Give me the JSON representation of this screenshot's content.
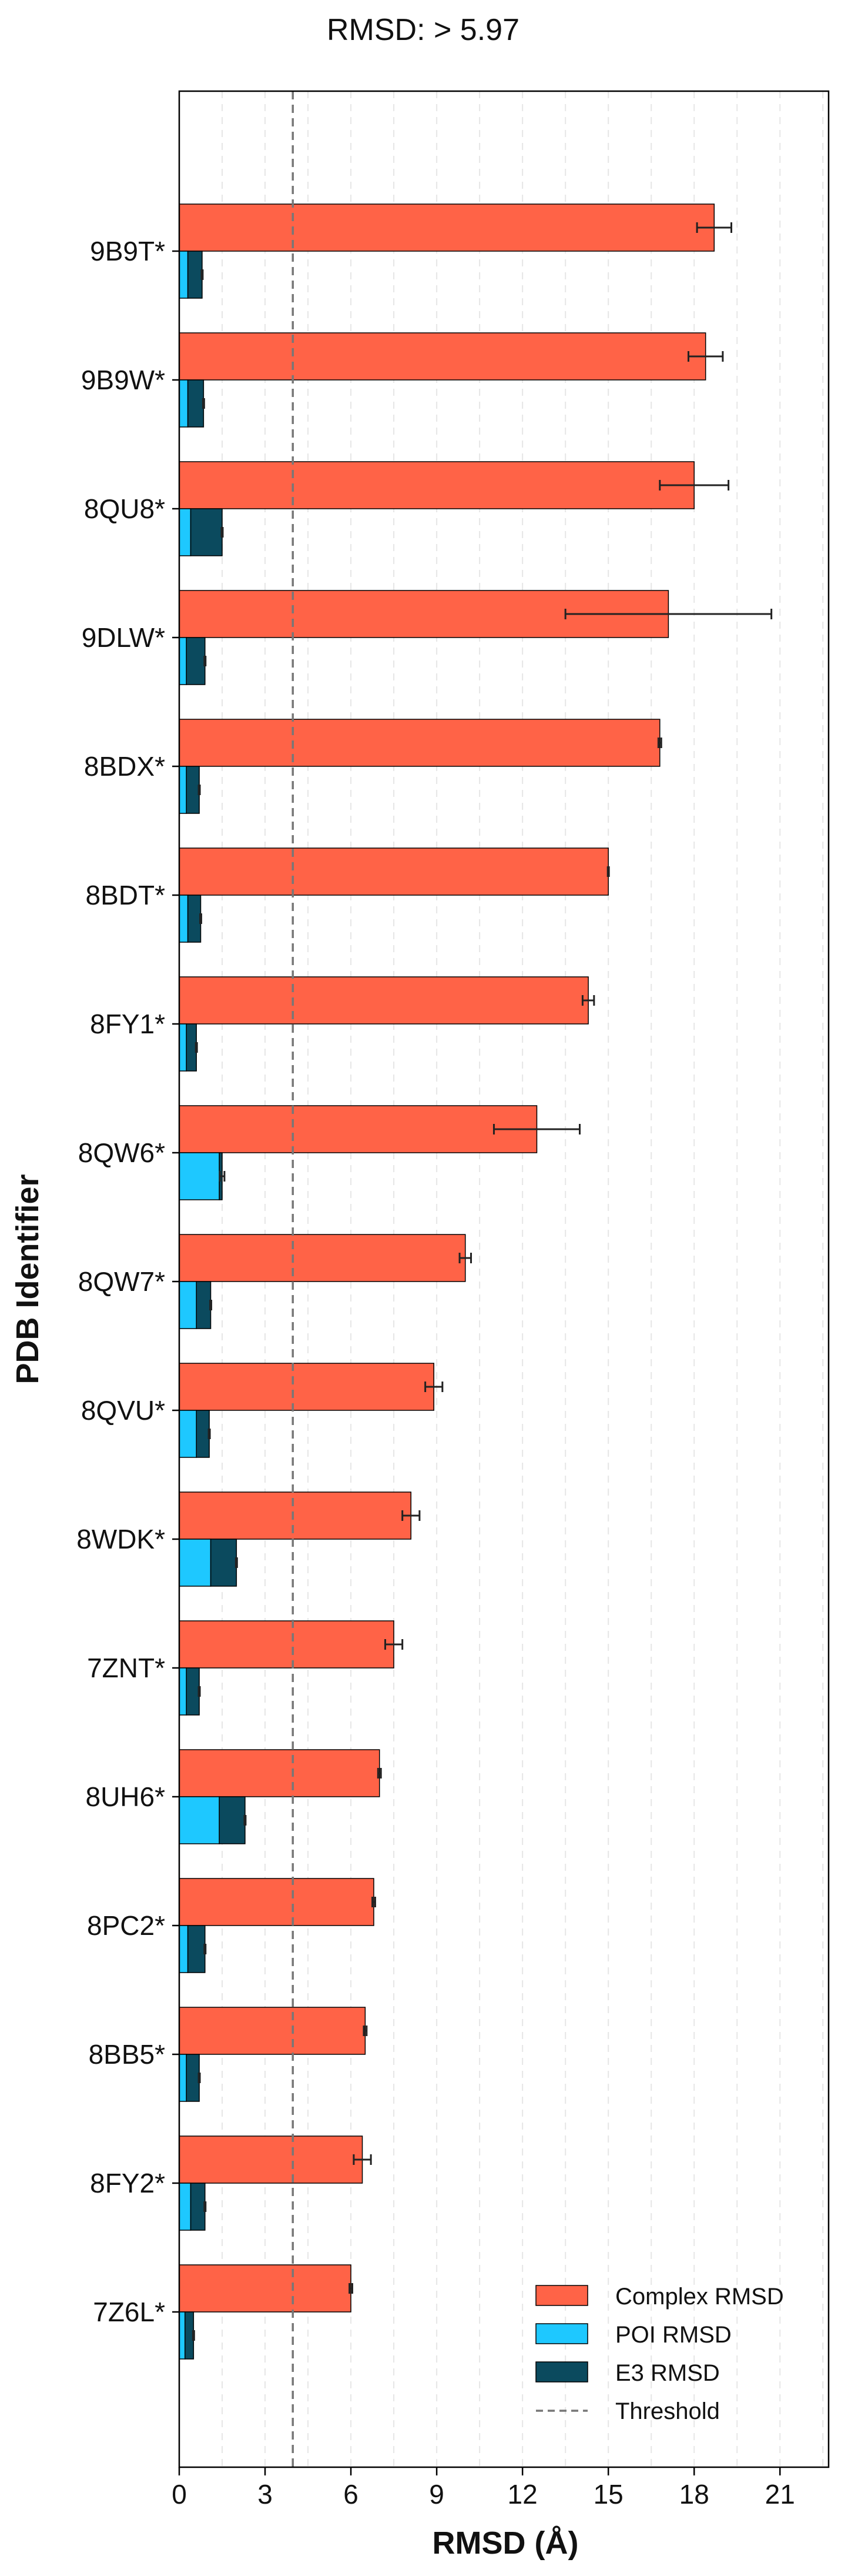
{
  "chart_data": {
    "type": "bar",
    "orientation": "horizontal",
    "title": "RMSD: > 5.97",
    "xlabel": "RMSD (Å)",
    "ylabel": "PDB Identifier",
    "xlim": [
      0,
      22.7
    ],
    "xticks": [
      0,
      3,
      6,
      9,
      12,
      15,
      18,
      21
    ],
    "xticklabels": [
      "0",
      "3",
      "6",
      "9",
      "12",
      "15",
      "18",
      "21"
    ],
    "grid": "x-dashed",
    "threshold": 3.97,
    "legend_position": "bottom-right",
    "categories": [
      "9B9T*",
      "9B9W*",
      "8QU8*",
      "9DLW*",
      "8BDX*",
      "8BDT*",
      "8FY1*",
      "8QW6*",
      "8QW7*",
      "8QVU*",
      "8WDK*",
      "7ZNT*",
      "8UH6*",
      "8PC2*",
      "8BB5*",
      "8FY2*",
      "7Z6L*"
    ],
    "series": [
      {
        "name": "Complex RMSD",
        "color": "#FF6347",
        "values": [
          18.7,
          18.4,
          18.0,
          17.1,
          16.8,
          15.0,
          14.3,
          12.5,
          10.0,
          8.9,
          8.1,
          7.5,
          7.0,
          6.8,
          6.5,
          6.4,
          6.0
        ],
        "errors": [
          0.6,
          0.6,
          1.2,
          3.6,
          0.05,
          0.02,
          0.2,
          1.5,
          0.2,
          0.3,
          0.3,
          0.3,
          0.05,
          0.05,
          0.05,
          0.3,
          0.05
        ]
      },
      {
        "name": "POI RMSD",
        "color": "#1EC8FF",
        "values": [
          0.3,
          0.3,
          0.4,
          0.25,
          0.25,
          0.3,
          0.25,
          1.4,
          0.6,
          0.6,
          1.1,
          0.25,
          1.4,
          0.3,
          0.25,
          0.4,
          0.2
        ],
        "errors": [
          0,
          0,
          0,
          0,
          0,
          0,
          0,
          0,
          0,
          0,
          0,
          0,
          0,
          0,
          0,
          0,
          0
        ]
      },
      {
        "name": "E3 RMSD",
        "color": "#0B4A5E",
        "values": [
          0.8,
          0.85,
          1.5,
          0.9,
          0.7,
          0.75,
          0.6,
          1.5,
          1.1,
          1.05,
          2.0,
          0.7,
          2.3,
          0.9,
          0.7,
          0.9,
          0.5
        ],
        "errors": [
          0,
          0,
          0,
          0,
          0,
          0,
          0,
          0.08,
          0,
          0,
          0,
          0,
          0,
          0,
          0,
          0,
          0
        ]
      }
    ],
    "legend": [
      "Complex RMSD",
      "POI RMSD",
      "E3 RMSD",
      "Threshold"
    ],
    "threshold_color": "#777777"
  }
}
